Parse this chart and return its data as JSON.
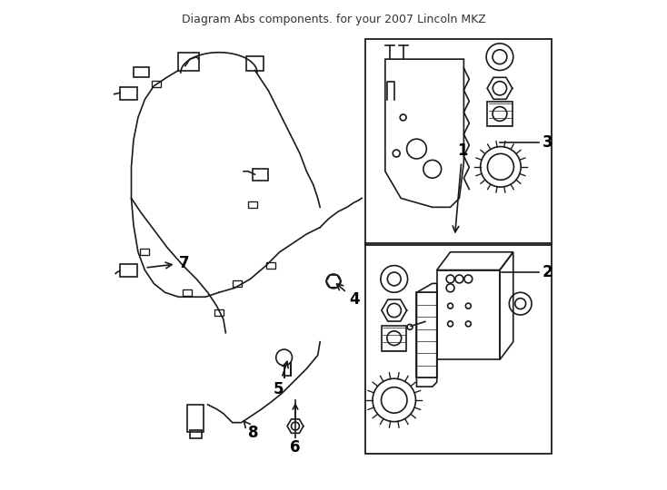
{
  "title": "Diagram Abs components. for your 2007 Lincoln MKZ",
  "bg_color": "#ffffff",
  "line_color": "#1a1a1a",
  "label_color": "#000000",
  "figsize": [
    7.34,
    5.4
  ],
  "dpi": 100
}
